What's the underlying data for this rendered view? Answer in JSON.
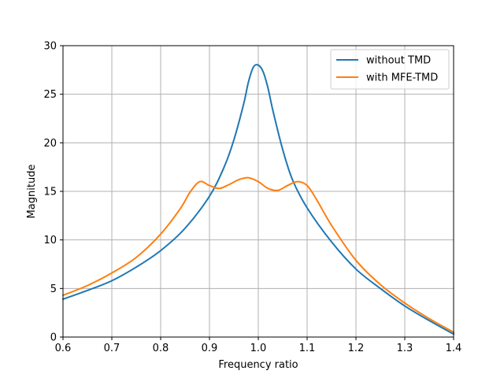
{
  "chart_data": {
    "type": "line",
    "title": "",
    "xlabel": "Frequency ratio",
    "ylabel": "Magnitude",
    "xlim": [
      0.6,
      1.4
    ],
    "ylim": [
      0,
      30
    ],
    "xticks": [
      0.6,
      0.7,
      0.8,
      0.9,
      1.0,
      1.1,
      1.2,
      1.3,
      1.4
    ],
    "xtick_labels": [
      "0.6",
      "0.7",
      "0.8",
      "0.9",
      "1.0",
      "1.1",
      "1.2",
      "1.3",
      "1.4"
    ],
    "yticks": [
      0,
      5,
      10,
      15,
      20,
      25,
      30
    ],
    "ytick_labels": [
      "0",
      "5",
      "10",
      "15",
      "20",
      "25",
      "30"
    ],
    "grid": true,
    "legend_position": "top-right",
    "series": [
      {
        "name": "without TMD",
        "color": "#1f77b4",
        "x": [
          0.6,
          0.65,
          0.7,
          0.75,
          0.8,
          0.85,
          0.9,
          0.93,
          0.95,
          0.97,
          0.98,
          0.99,
          1.0,
          1.01,
          1.02,
          1.03,
          1.05,
          1.07,
          1.1,
          1.15,
          1.2,
          1.25,
          1.3,
          1.35,
          1.4
        ],
        "y": [
          3.9,
          4.8,
          5.8,
          7.2,
          8.9,
          11.2,
          14.5,
          17.5,
          20.3,
          24.0,
          26.3,
          27.8,
          28.0,
          27.3,
          25.6,
          23.3,
          19.3,
          16.2,
          13.3,
          9.8,
          7.0,
          5.0,
          3.2,
          1.7,
          0.3
        ]
      },
      {
        "name": "with MFE-TMD",
        "color": "#ff7f0e",
        "x": [
          0.6,
          0.65,
          0.7,
          0.75,
          0.8,
          0.84,
          0.86,
          0.88,
          0.9,
          0.92,
          0.94,
          0.96,
          0.98,
          1.0,
          1.02,
          1.04,
          1.06,
          1.08,
          1.1,
          1.12,
          1.15,
          1.2,
          1.25,
          1.3,
          1.35,
          1.4
        ],
        "y": [
          4.3,
          5.3,
          6.6,
          8.2,
          10.6,
          13.2,
          14.9,
          16.0,
          15.6,
          15.3,
          15.7,
          16.2,
          16.4,
          16.0,
          15.3,
          15.1,
          15.6,
          16.0,
          15.6,
          14.1,
          11.5,
          7.9,
          5.4,
          3.5,
          1.9,
          0.5
        ]
      }
    ]
  }
}
